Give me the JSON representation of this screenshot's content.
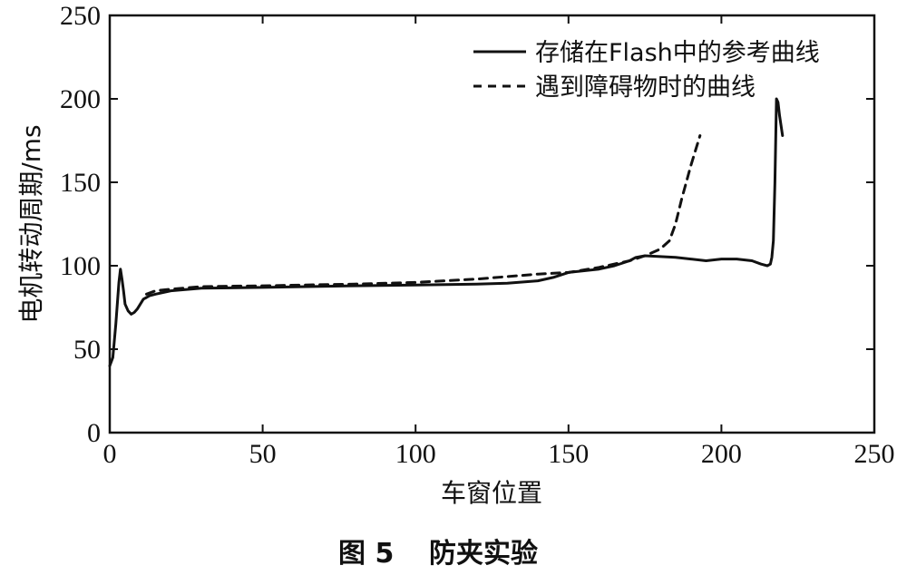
{
  "figure": {
    "caption_number": "图 5",
    "caption_title": "防夹实验"
  },
  "chart_data": {
    "type": "line",
    "xlabel": "车窗位置",
    "ylabel": "电机转动周期/ms",
    "xlim": [
      0,
      250
    ],
    "ylim": [
      0,
      250
    ],
    "xticks": [
      0,
      50,
      100,
      150,
      200,
      250
    ],
    "yticks": [
      0,
      50,
      100,
      150,
      200,
      250
    ],
    "grid": false,
    "legend_position": "top-right",
    "series": [
      {
        "name": "存储在Flash中的参考曲线",
        "style": "solid",
        "color": "#111111",
        "x": [
          0,
          1,
          2,
          3,
          3.5,
          4,
          4.5,
          5,
          6,
          7,
          8,
          9,
          10,
          11,
          12,
          13,
          15,
          20,
          30,
          50,
          80,
          100,
          120,
          130,
          140,
          145,
          150,
          160,
          165,
          170,
          172,
          175,
          180,
          185,
          190,
          195,
          200,
          205,
          210,
          213,
          215,
          216,
          216.5,
          217,
          217.5,
          218,
          218.5,
          219,
          220
        ],
        "y": [
          40,
          45,
          65,
          90,
          98,
          92,
          85,
          77,
          73,
          71,
          72,
          74,
          77,
          80,
          81,
          82,
          83,
          85,
          86.5,
          87,
          88,
          88.5,
          89,
          89.5,
          91,
          93,
          96,
          98,
          100,
          103,
          105,
          106,
          105.5,
          105,
          104,
          103,
          104,
          104,
          103,
          101,
          100,
          101,
          105,
          115,
          150,
          200,
          198,
          190,
          178
        ]
      },
      {
        "name": "遇到障碍物时的曲线",
        "style": "dashed",
        "color": "#111111",
        "x": [
          12,
          15,
          20,
          30,
          50,
          80,
          100,
          120,
          140,
          150,
          160,
          170,
          175,
          180,
          183,
          185,
          187,
          190,
          193
        ],
        "y": [
          83,
          85,
          86,
          87.5,
          88,
          89,
          90,
          92,
          95,
          96,
          99,
          103,
          106,
          110,
          115,
          125,
          140,
          160,
          178
        ]
      }
    ]
  }
}
